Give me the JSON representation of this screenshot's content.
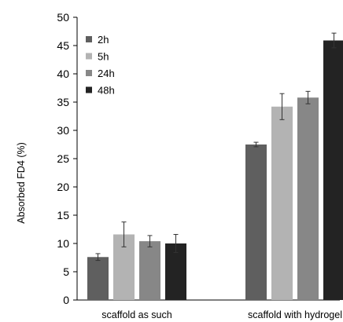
{
  "chart_data": {
    "type": "bar",
    "ylabel": "Absorbed FD4 (%)",
    "xlabel": "",
    "ylim": [
      0,
      50
    ],
    "yticks": [
      0,
      5,
      10,
      15,
      20,
      25,
      30,
      35,
      40,
      45,
      50
    ],
    "legend_position": "top-left",
    "grid": false,
    "categories": [
      "scaffold as such",
      "scaffold with hydrogel"
    ],
    "series": [
      {
        "name": "2h",
        "color": "#5f5f5f",
        "values": [
          7.6,
          27.5
        ],
        "errors": [
          0.6,
          0.4
        ]
      },
      {
        "name": "5h",
        "color": "#b3b3b3",
        "values": [
          11.6,
          34.2
        ],
        "errors": [
          2.2,
          2.3
        ]
      },
      {
        "name": "24h",
        "color": "#878787",
        "values": [
          10.4,
          35.8
        ],
        "errors": [
          1.0,
          1.1
        ]
      },
      {
        "name": "48h",
        "color": "#232323",
        "values": [
          10.0,
          45.9
        ],
        "errors": [
          1.6,
          1.3
        ]
      }
    ]
  }
}
